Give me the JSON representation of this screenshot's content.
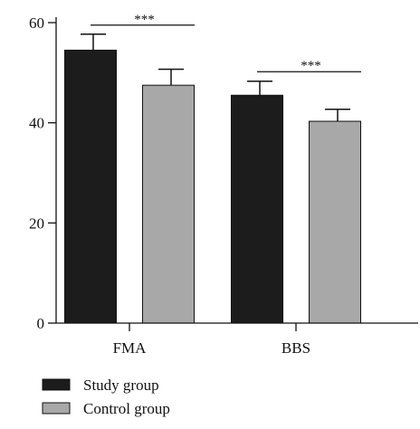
{
  "chart_data": {
    "type": "bar",
    "categories": [
      "FMA",
      "BBS"
    ],
    "series": [
      {
        "name": "Study group",
        "values": [
          54.5,
          45.5
        ],
        "errors": [
          3.2,
          2.8
        ],
        "color": "#1c1c1c"
      },
      {
        "name": "Control group",
        "values": [
          47.5,
          40.3
        ],
        "errors": [
          3.2,
          2.4
        ],
        "color": "#a8a8a8"
      }
    ],
    "yticks": [
      0,
      20,
      40,
      60
    ],
    "ylim": [
      0,
      60
    ],
    "significance": [
      {
        "category": "FMA",
        "label": "***",
        "y": 59.5
      },
      {
        "category": "BBS",
        "label": "***",
        "y": 50.2
      }
    ],
    "legend_position": "bottom-left",
    "grid": false
  }
}
